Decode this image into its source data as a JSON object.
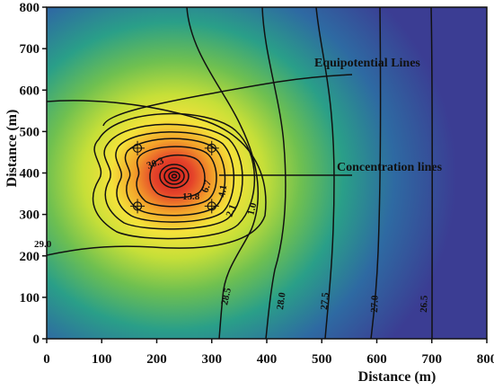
{
  "chart_data": {
    "type": "heatmap",
    "title": "",
    "xlabel": "Distance (m)",
    "ylabel": "Distance (m)",
    "xlim": [
      0,
      800
    ],
    "ylim": [
      0,
      800
    ],
    "x_ticks": [
      "0",
      "100",
      "200",
      "300",
      "400",
      "500",
      "600",
      "700",
      "800"
    ],
    "y_ticks": [
      "0",
      "100",
      "200",
      "300",
      "400",
      "500",
      "600",
      "700",
      "800"
    ],
    "colormap": [
      "#3a3b92",
      "#2f6fa0",
      "#25a08a",
      "#9acd3c",
      "#f4e23a",
      "#f19a2a",
      "#d42a20"
    ],
    "background_color": "#3f3f95",
    "source_center": [
      230,
      390
    ],
    "concentration_lines": [
      "30.3",
      "13.8",
      "6.7",
      "4.1",
      "2.1",
      "1.0"
    ],
    "equipotential_lines": [
      {
        "label": "29.0",
        "x": 0,
        "y": 200
      },
      {
        "label": "28.5",
        "x": 260,
        "y": 0
      },
      {
        "label": "28.0",
        "x": 400,
        "y": 0
      },
      {
        "label": "27.5",
        "x": 510,
        "y": 0
      },
      {
        "label": "27.0",
        "x": 610,
        "y": 0
      },
      {
        "label": "26.5",
        "x": 700,
        "y": 0
      }
    ],
    "wells": [
      [
        165,
        460
      ],
      [
        165,
        320
      ],
      [
        300,
        460
      ],
      [
        300,
        320
      ]
    ],
    "annotations": {
      "equipotential": {
        "text": "Equipotential Lines",
        "x": 550,
        "y": 635
      },
      "concentration": {
        "text": "Concentration lines",
        "x": 550,
        "y": 395
      }
    }
  }
}
